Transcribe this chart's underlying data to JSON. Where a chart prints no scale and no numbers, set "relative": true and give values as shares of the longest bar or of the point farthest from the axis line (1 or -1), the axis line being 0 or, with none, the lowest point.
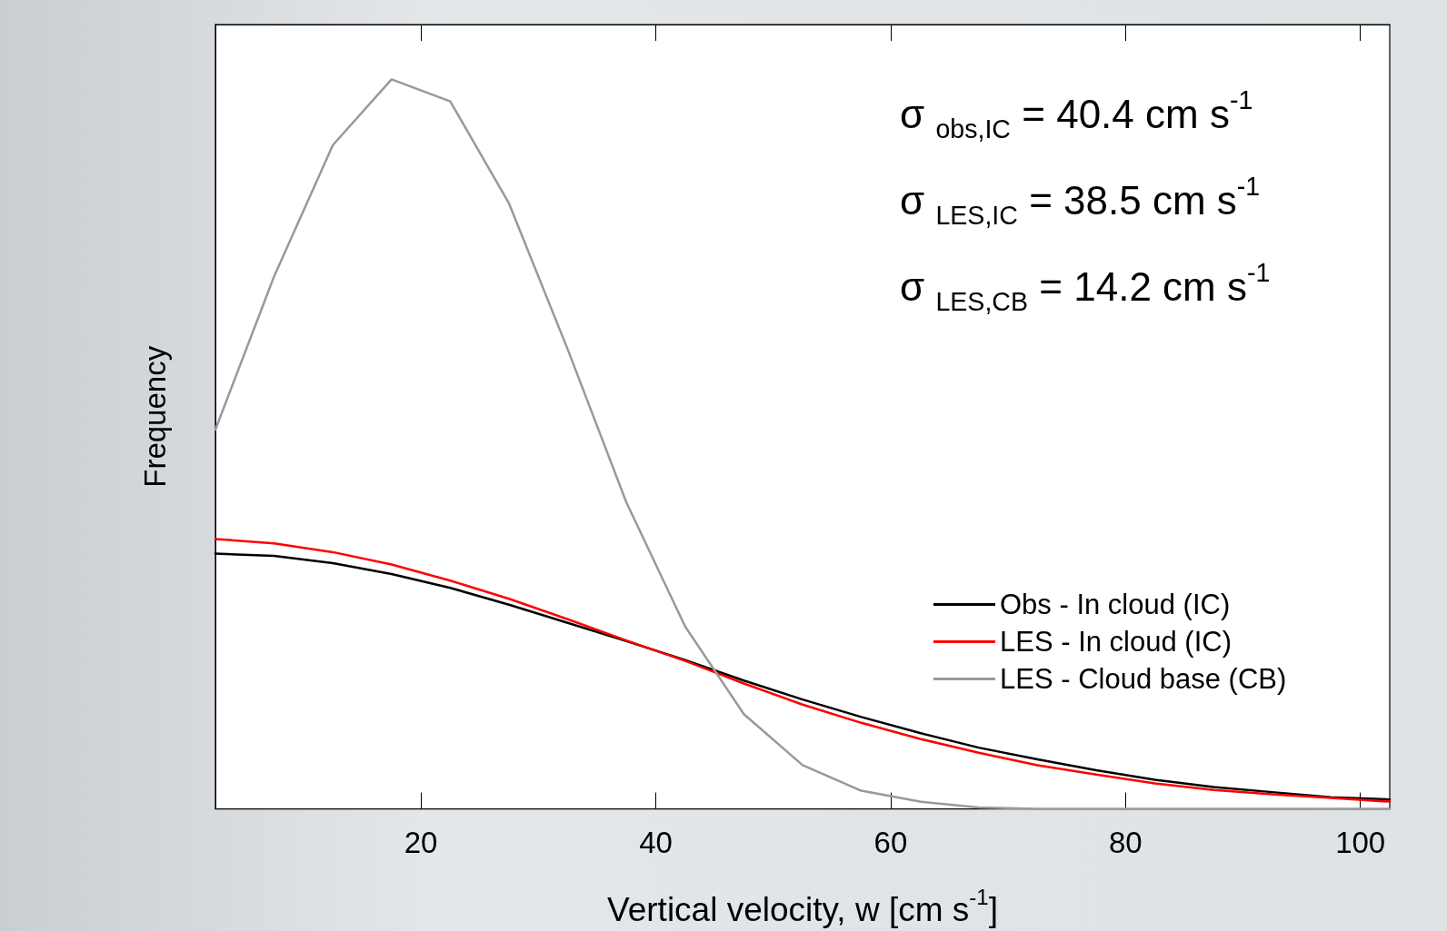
{
  "chart_data": {
    "type": "line",
    "xlabel": "Vertical velocity, w [cm s$^{-1}$]",
    "ylabel": "Frequency",
    "relative": true,
    "tick_labels": "x",
    "xlim": [
      2.5,
      102.5
    ],
    "xticks": [
      20,
      40,
      60,
      80,
      100
    ],
    "grid": false,
    "legend": "bottom right",
    "marker": "none",
    "line_style": "solid",
    "x": [
      2.5,
      7.5,
      12.5,
      17.5,
      22.5,
      27.5,
      32.5,
      37.5,
      42.5,
      47.5,
      52.5,
      57.5,
      62.5,
      67.5,
      72.5,
      77.5,
      82.5,
      87.5,
      92.5,
      97.5,
      102.5
    ],
    "series": [
      {
        "name": "Obs - In cloud (IC)",
        "color": "#000000",
        "values": [
          0.35,
          0.347,
          0.337,
          0.322,
          0.303,
          0.28,
          0.255,
          0.23,
          0.204,
          0.176,
          0.15,
          0.126,
          0.104,
          0.084,
          0.068,
          0.053,
          0.04,
          0.03,
          0.023,
          0.016,
          0.013
        ]
      },
      {
        "name": "LES - In cloud (IC)",
        "color": "#ff0000",
        "values": [
          0.37,
          0.364,
          0.352,
          0.335,
          0.313,
          0.288,
          0.26,
          0.231,
          0.203,
          0.172,
          0.143,
          0.118,
          0.096,
          0.077,
          0.06,
          0.047,
          0.035,
          0.026,
          0.02,
          0.015,
          0.01
        ]
      },
      {
        "name": "LES - Cloud base (CB)",
        "color": "#999999",
        "values": [
          0.52,
          0.73,
          0.91,
          1,
          0.97,
          0.83,
          0.63,
          0.42,
          0.25,
          0.13,
          0.06,
          0.025,
          0.01,
          0.002,
          0,
          0,
          0,
          0,
          0,
          0,
          0
        ]
      }
    ],
    "annotations": [
      "σ $_{obs,IC}$ = 40.4 cm s$^{-1}$",
      "σ $_{LES,IC}$ = 38.5 cm s$^{-1}$",
      "σ $_{LES,CB}$ = 14.2 cm s$^{-1}$"
    ]
  }
}
